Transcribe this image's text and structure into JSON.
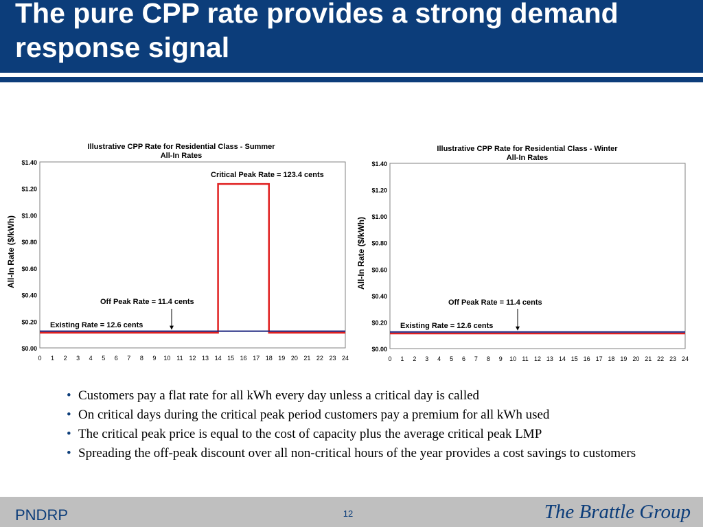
{
  "slide": {
    "title": "The pure CPP rate provides a strong demand response signal",
    "bullets": [
      "Customers pay a flat rate for all kWh every day unless a critical day is called",
      "On critical days during the critical peak period customers pay a premium for all kWh used",
      "The critical peak price is equal to the cost of capacity plus the average critical peak LMP",
      "Spreading the off-peak discount over all non-critical hours of the year provides a cost savings to customers"
    ]
  },
  "footer": {
    "left": "PNDRP",
    "page": "12",
    "brand": "The Brattle Group"
  },
  "colors": {
    "title_band": "#0c3d7a",
    "footer_band": "#bfbfbf",
    "cpp_line": "#e02020",
    "existing_line": "#1a237e"
  },
  "chart_data": [
    {
      "type": "line",
      "title": "Illustrative CPP Rate for Residential Class - Summer",
      "subtitle": "All-In Rates",
      "ylabel": "All-In Rate ($/kWh)",
      "xlabel": "",
      "ylim": [
        0,
        1.4
      ],
      "yticks": [
        "$0.00",
        "$0.20",
        "$0.40",
        "$0.60",
        "$0.80",
        "$1.00",
        "$1.20",
        "$1.40"
      ],
      "xticks": [
        "0",
        "1",
        "2",
        "3",
        "4",
        "5",
        "6",
        "7",
        "8",
        "9",
        "10",
        "11",
        "12",
        "13",
        "14",
        "15",
        "16",
        "17",
        "18",
        "19",
        "20",
        "21",
        "22",
        "23",
        "24"
      ],
      "grid": false,
      "series": [
        {
          "name": "CPP Rate",
          "color": "#e02020",
          "x": [
            0,
            14,
            14,
            18,
            18,
            24
          ],
          "y": [
            0.114,
            0.114,
            1.234,
            1.234,
            0.114,
            0.114
          ]
        },
        {
          "name": "Existing Rate",
          "color": "#1a237e",
          "x": [
            0,
            24
          ],
          "y": [
            0.126,
            0.126
          ]
        }
      ],
      "annotations": {
        "critical": "Critical Peak Rate = 123.4 cents",
        "offpeak": "Off Peak Rate = 11.4 cents",
        "existing": "Existing Rate = 12.6 cents"
      }
    },
    {
      "type": "line",
      "title": "Illustrative CPP Rate for Residential Class - Winter",
      "subtitle": "All-In Rates",
      "ylabel": "All-In Rate ($/kWh)",
      "xlabel": "",
      "ylim": [
        0,
        1.4
      ],
      "yticks": [
        "$0.00",
        "$0.20",
        "$0.40",
        "$0.60",
        "$0.80",
        "$1.00",
        "$1.20",
        "$1.40"
      ],
      "xticks": [
        "0",
        "1",
        "2",
        "3",
        "4",
        "5",
        "6",
        "7",
        "8",
        "9",
        "10",
        "11",
        "12",
        "13",
        "14",
        "15",
        "16",
        "17",
        "18",
        "19",
        "20",
        "21",
        "22",
        "23",
        "24"
      ],
      "grid": false,
      "series": [
        {
          "name": "CPP Rate",
          "color": "#e02020",
          "x": [
            0,
            24
          ],
          "y": [
            0.114,
            0.114
          ]
        },
        {
          "name": "Existing Rate",
          "color": "#1a237e",
          "x": [
            0,
            24
          ],
          "y": [
            0.126,
            0.126
          ]
        }
      ],
      "annotations": {
        "offpeak": "Off Peak Rate = 11.4 cents",
        "existing": "Existing Rate = 12.6 cents"
      }
    }
  ]
}
